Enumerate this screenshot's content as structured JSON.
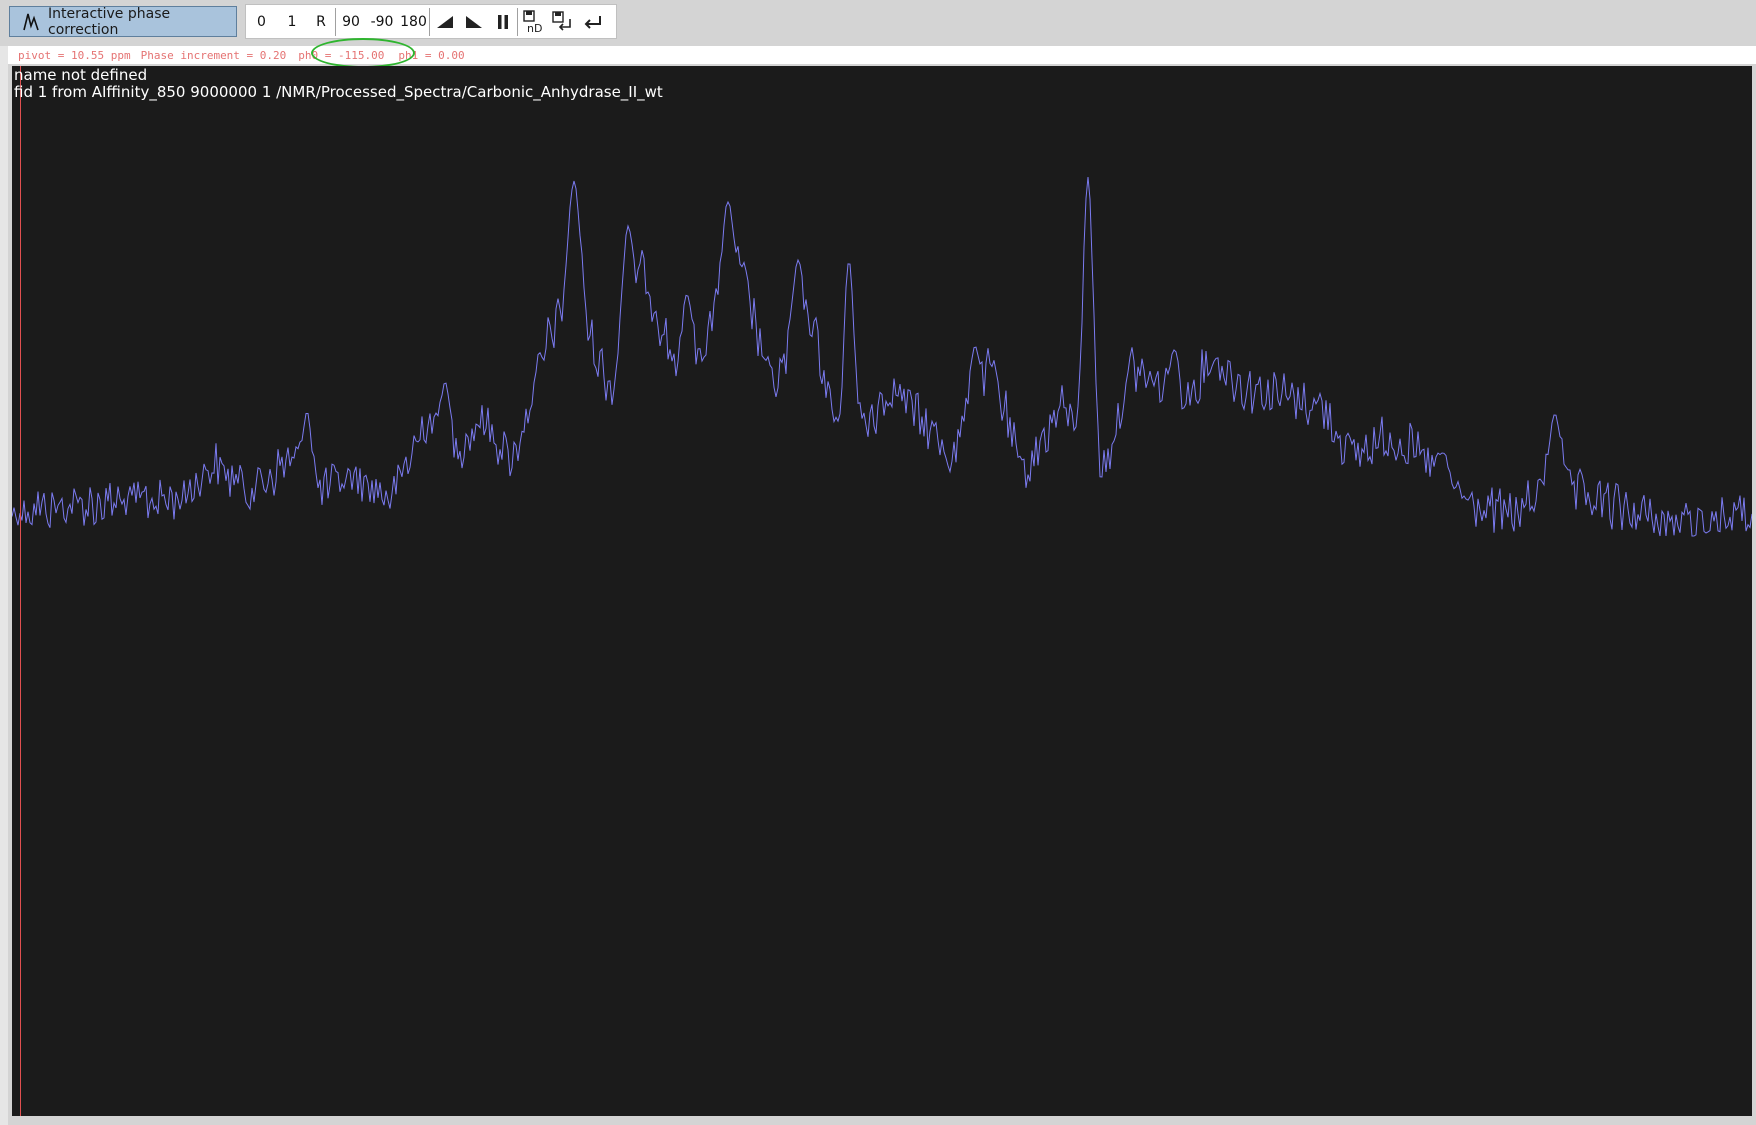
{
  "toolbar": {
    "mode_label": "Interactive phase correction",
    "buttons": {
      "zero": "0",
      "one": "1",
      "reset": "R",
      "plus90": "90",
      "minus90": "-90",
      "plus180": "180"
    },
    "icons": [
      "ramp-up-icon",
      "ramp-down-icon",
      "pause-icon",
      "save-nd-icon",
      "save-return-icon",
      "return-icon"
    ]
  },
  "status": {
    "pivot": "pivot = 10.55 ppm",
    "increment": "Phase increment = 0.20",
    "ph0": "ph0 = -115.00",
    "ph1": "ph1 = 0.00"
  },
  "spectrum": {
    "title": "name not defined",
    "subtitle": "fid 1 from AIffinity_850  9000000  1  /NMR/Processed_Spectra/Carbonic_Anhydrase_II_wt",
    "trace_color": "#7b7bf0",
    "pivot_color": "#e05050",
    "background_color": "#1b1b1b",
    "highlight_color": "#2fb52f"
  }
}
